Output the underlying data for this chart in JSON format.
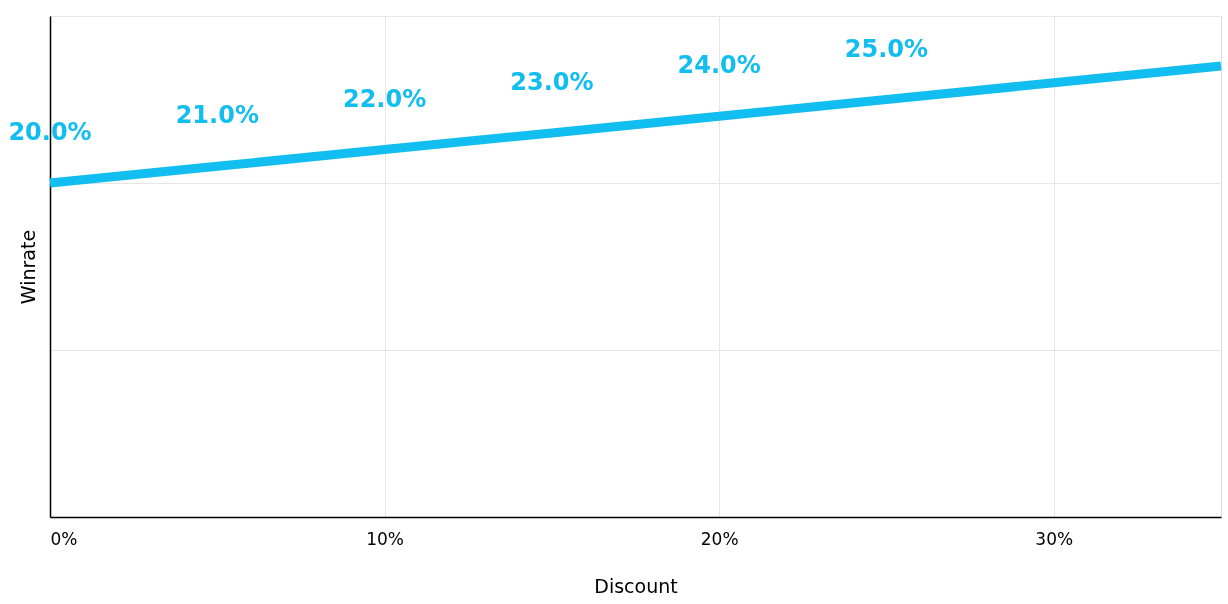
{
  "chart_data": {
    "type": "line",
    "xlabel": "Discount",
    "ylabel": "Winrate",
    "x": [
      0,
      5,
      10,
      15,
      20,
      25,
      30,
      35
    ],
    "series": [
      {
        "color": "#12bdf0",
        "values": [
          20,
          21,
          22,
          23,
          24,
          25,
          26,
          27
        ],
        "value_labels": [
          "20.0%",
          "21.0%",
          "22.0%",
          "23.0%",
          "24.0%",
          "25.0%",
          null,
          null
        ]
      }
    ],
    "xlim": [
      0,
      35
    ],
    "xticks": [
      {
        "value": 0,
        "label": "0%"
      },
      {
        "value": 10,
        "label": "10%"
      },
      {
        "value": 20,
        "label": "20%"
      },
      {
        "value": 30,
        "label": "30%"
      }
    ],
    "ylim": [
      0,
      30
    ],
    "yticks": [
      {
        "value": 0,
        "label": null
      },
      {
        "value": 10,
        "label": null
      },
      {
        "value": 20,
        "label": null
      },
      {
        "value": 30,
        "label": null
      }
    ],
    "tick_labels": "x",
    "grid": true,
    "marker": "none",
    "line_style": "solid"
  }
}
